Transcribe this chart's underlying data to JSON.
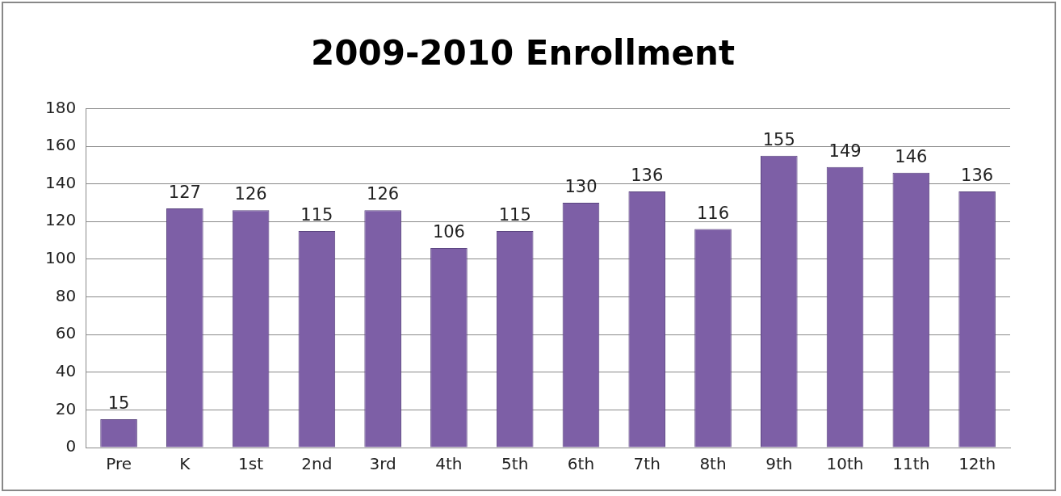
{
  "chart_data": {
    "type": "bar",
    "title": "2009-2010 Enrollment",
    "categories": [
      "Pre",
      "K",
      "1st",
      "2nd",
      "3rd",
      "4th",
      "5th",
      "6th",
      "7th",
      "8th",
      "9th",
      "10th",
      "11th",
      "12th"
    ],
    "values": [
      15,
      127,
      126,
      115,
      126,
      106,
      115,
      130,
      136,
      116,
      155,
      149,
      146,
      136
    ],
    "color": "#7d5fa6",
    "ylim": [
      0,
      180
    ],
    "yticks": [
      0,
      20,
      40,
      60,
      80,
      100,
      120,
      140,
      160,
      180
    ],
    "grid": "y",
    "data_labels": true,
    "legend": false
  }
}
